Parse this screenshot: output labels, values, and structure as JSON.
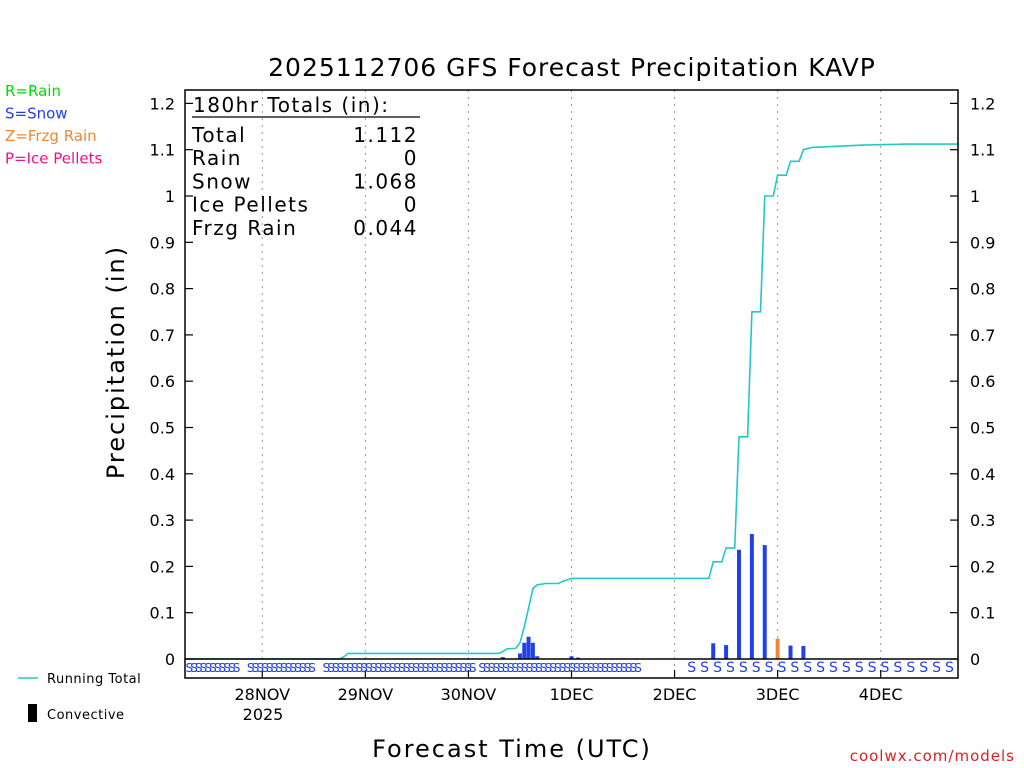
{
  "colors": {
    "rain": "#00dd00",
    "snow": "#2040f0",
    "frzg": "#ee8833",
    "pellets": "#ee1188",
    "running": "#22c8c8",
    "watermark": "#dd2020"
  },
  "chart_data": {
    "type": "bar",
    "title": "2025112706 GFS Forecast Precipitation KAVP",
    "ylabel": "Precipitation (in)",
    "xlabel": "Forecast Time (UTC)",
    "ylim": [
      0,
      1.23
    ],
    "xlim_hours": [
      -18,
      162
    ],
    "yticks": [
      0,
      0.1,
      0.2,
      0.3,
      0.4,
      0.5,
      0.6,
      0.7,
      0.8,
      0.9,
      1,
      1.1,
      1.2
    ],
    "ytick_labels": [
      "0",
      "0.1",
      "0.2",
      "0.3",
      "0.4",
      "0.5",
      "0.6",
      "0.7",
      "0.8",
      "0.9",
      "1",
      "1.1",
      "1.2"
    ],
    "x_ticks": [
      {
        "hour": 0,
        "label": "28NOV"
      },
      {
        "hour": 24,
        "label": "29NOV"
      },
      {
        "hour": 48,
        "label": "30NOV"
      },
      {
        "hour": 72,
        "label": "1DEC"
      },
      {
        "hour": 96,
        "label": "2DEC"
      },
      {
        "hour": 120,
        "label": "3DEC"
      },
      {
        "hour": 144,
        "label": "4DEC"
      }
    ],
    "year_label": "2025",
    "legend": [
      {
        "code": "R",
        "label": "R=Rain",
        "color_key": "rain"
      },
      {
        "code": "S",
        "label": "S=Snow",
        "color_key": "snow"
      },
      {
        "code": "Z",
        "label": "Z=Frzg Rain",
        "color_key": "frzg"
      },
      {
        "code": "P",
        "label": "P=Ice Pellets",
        "color_key": "pellets"
      }
    ],
    "bottom_legend": {
      "running": "Running Total",
      "convective": "Convective"
    },
    "totals": {
      "header": "180hr Totals (in):",
      "rows": [
        {
          "label": "Total",
          "value": "1.112"
        },
        {
          "label": "Rain",
          "value": "0"
        },
        {
          "label": "Snow",
          "value": "1.068"
        },
        {
          "label": "Ice Pellets",
          "value": "0"
        },
        {
          "label": "Frzg Rain",
          "value": "0.044"
        }
      ]
    },
    "bars": [
      {
        "hour": 73.5,
        "value": 0.003,
        "type": "S"
      },
      {
        "hour": 82.0,
        "value": 0.001,
        "type": "S"
      },
      {
        "hour": 56.0,
        "value": 0.004,
        "type": "S"
      },
      {
        "hour": 60.0,
        "value": 0.012,
        "type": "S"
      },
      {
        "hour": 61.0,
        "value": 0.035,
        "type": "S"
      },
      {
        "hour": 62.0,
        "value": 0.048,
        "type": "S"
      },
      {
        "hour": 63.0,
        "value": 0.035,
        "type": "S"
      },
      {
        "hour": 64.0,
        "value": 0.006,
        "type": "S"
      },
      {
        "hour": 72.0,
        "value": 0.006,
        "type": "S"
      },
      {
        "hour": 105.0,
        "value": 0.034,
        "type": "S"
      },
      {
        "hour": 108.0,
        "value": 0.03,
        "type": "S"
      },
      {
        "hour": 111.0,
        "value": 0.236,
        "type": "S"
      },
      {
        "hour": 114.0,
        "value": 0.27,
        "type": "S"
      },
      {
        "hour": 117.0,
        "value": 0.246,
        "type": "S"
      },
      {
        "hour": 120.0,
        "value": 0.044,
        "type": "Z"
      },
      {
        "hour": 123.0,
        "value": 0.029,
        "type": "S"
      },
      {
        "hour": 126.0,
        "value": 0.028,
        "type": "S"
      }
    ],
    "running_total": [
      [
        -18,
        0
      ],
      [
        18,
        0
      ],
      [
        19,
        0.005
      ],
      [
        20,
        0.012
      ],
      [
        40,
        0.012
      ],
      [
        55,
        0.012
      ],
      [
        56,
        0.016
      ],
      [
        57,
        0.022
      ],
      [
        59,
        0.023
      ],
      [
        60,
        0.035
      ],
      [
        61,
        0.07
      ],
      [
        62,
        0.11
      ],
      [
        63,
        0.152
      ],
      [
        64,
        0.16
      ],
      [
        66,
        0.163
      ],
      [
        69,
        0.163
      ],
      [
        70,
        0.168
      ],
      [
        72,
        0.174
      ],
      [
        104,
        0.174
      ],
      [
        105,
        0.21
      ],
      [
        107,
        0.21
      ],
      [
        108,
        0.24
      ],
      [
        110,
        0.24
      ],
      [
        111,
        0.48
      ],
      [
        113,
        0.48
      ],
      [
        114,
        0.75
      ],
      [
        116,
        0.75
      ],
      [
        117,
        1.0
      ],
      [
        119,
        1.0
      ],
      [
        120,
        1.045
      ],
      [
        122,
        1.045
      ],
      [
        123,
        1.075
      ],
      [
        125,
        1.075
      ],
      [
        126,
        1.1
      ],
      [
        128,
        1.105
      ],
      [
        140,
        1.11
      ],
      [
        150,
        1.112
      ],
      [
        162,
        1.112
      ]
    ],
    "ptype_row": {
      "dense_start": -17,
      "dense_end": 88,
      "dense_step": 1.1,
      "sparse_start": 100,
      "sparse_end": 162,
      "sparse_step": 3,
      "z_hour": 120,
      "gap_hours": [
        [
          -5,
          -3
        ],
        [
          12,
          14
        ],
        [
          49.5,
          51
        ],
        [
          93,
          99
        ]
      ]
    }
  },
  "watermark": "coolwx.com/models"
}
